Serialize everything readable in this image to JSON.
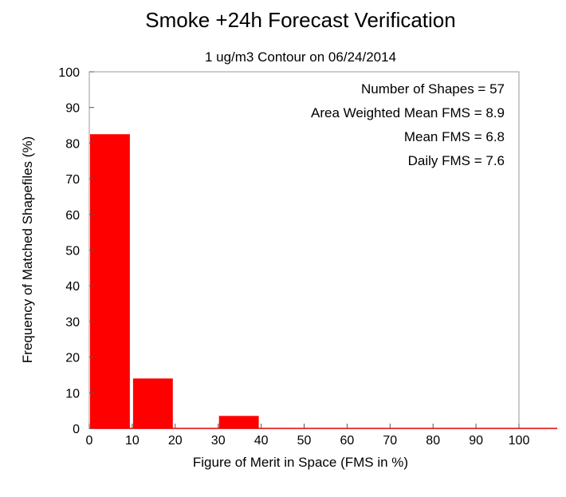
{
  "chart_data": {
    "type": "bar",
    "title": "Smoke +24h Forecast Verification",
    "subtitle": "1 ug/m3 Contour on 06/24/2014",
    "xlabel": "Figure of Merit in Space (FMS in %)",
    "ylabel": "Frequency of Matched Shapefiles (%)",
    "xlim": [
      0,
      100
    ],
    "ylim": [
      0,
      100
    ],
    "xticks": [
      0,
      10,
      20,
      30,
      40,
      50,
      60,
      70,
      80,
      90,
      100
    ],
    "yticks": [
      0,
      10,
      20,
      30,
      40,
      50,
      60,
      70,
      80,
      90,
      100
    ],
    "bin_width": 10,
    "bins": [
      {
        "x0": 0,
        "value": 82.5
      },
      {
        "x0": 10,
        "value": 14.0
      },
      {
        "x0": 20,
        "value": 0.0
      },
      {
        "x0": 30,
        "value": 3.5
      },
      {
        "x0": 40,
        "value": 0.0
      },
      {
        "x0": 50,
        "value": 0.0
      },
      {
        "x0": 60,
        "value": 0.0
      },
      {
        "x0": 70,
        "value": 0.0
      },
      {
        "x0": 80,
        "value": 0.0
      },
      {
        "x0": 90,
        "value": 0.0
      }
    ],
    "annotations": [
      "Number of Shapes = 57",
      "Area Weighted Mean FMS = 8.9",
      "Mean FMS = 6.8",
      "Daily FMS = 7.6"
    ],
    "bar_color": "#ff0000",
    "grid": false,
    "legend": false
  }
}
